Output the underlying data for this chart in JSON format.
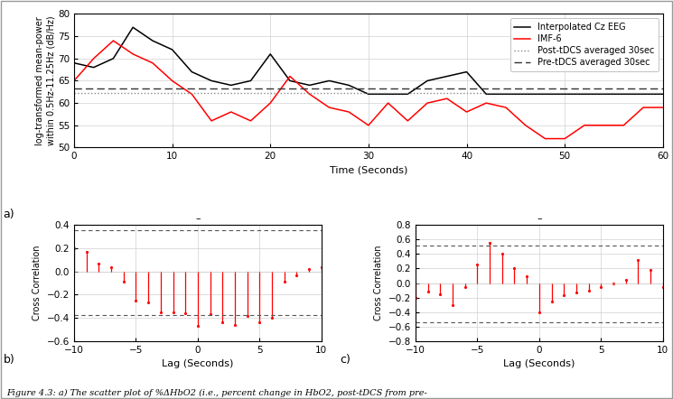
{
  "top_plot": {
    "black_x": [
      0,
      2,
      4,
      6,
      8,
      9,
      10,
      12,
      14,
      16,
      18,
      20,
      22,
      24,
      26,
      28,
      30,
      32,
      34,
      36,
      38,
      40,
      42,
      44,
      46,
      48,
      50,
      52,
      54,
      56,
      58,
      60
    ],
    "black_y": [
      69,
      68,
      70,
      77,
      74,
      73,
      72,
      67,
      65,
      64,
      65,
      71,
      65,
      64,
      65,
      64,
      62,
      62,
      62,
      65,
      66,
      67,
      62,
      62,
      62,
      62,
      62,
      62,
      62,
      62,
      62,
      62
    ],
    "red_x": [
      0,
      2,
      4,
      6,
      8,
      10,
      12,
      14,
      16,
      18,
      20,
      22,
      24,
      26,
      28,
      30,
      32,
      34,
      36,
      38,
      40,
      42,
      44,
      46,
      48,
      50,
      52,
      54,
      56,
      58,
      60
    ],
    "red_y": [
      65,
      70,
      74,
      71,
      69,
      65,
      62,
      56,
      58,
      56,
      60,
      66,
      62,
      59,
      58,
      55,
      60,
      56,
      60,
      61,
      58,
      60,
      59,
      55,
      52,
      52,
      55,
      55,
      55,
      59,
      59
    ],
    "post_tdcs": 62.2,
    "pre_tdcs": 63.2,
    "xlim": [
      0,
      60
    ],
    "ylim": [
      50,
      80
    ],
    "xticks": [
      0,
      10,
      20,
      30,
      40,
      50,
      60
    ],
    "yticks": [
      50,
      55,
      60,
      65,
      70,
      75,
      80
    ],
    "xlabel": "Time (Seconds)",
    "ylabel": "log-transformed mean-power\nwithin 0.5Hz-11.25Hz (dB/Hz)",
    "legend": [
      "Interpolated Cz EEG",
      "IMF-6",
      "Post-tDCS averaged 30sec",
      "Pre-tDCS averaged 30sec"
    ]
  },
  "bottom_left": {
    "lags": [
      -10,
      -9,
      -8,
      -7,
      -6,
      -5,
      -4,
      -3,
      -2,
      -1,
      0,
      1,
      2,
      3,
      4,
      5,
      6,
      7,
      8,
      9,
      10
    ],
    "xcorr": [
      0.2,
      0.17,
      0.07,
      0.04,
      -0.09,
      -0.25,
      -0.27,
      -0.35,
      -0.35,
      -0.36,
      -0.47,
      -0.37,
      -0.44,
      -0.46,
      -0.38,
      -0.44,
      -0.4,
      -0.09,
      -0.03,
      0.02,
      0.04
    ],
    "conf_upper": 0.355,
    "conf_lower": -0.375,
    "xlim": [
      -10,
      10
    ],
    "ylim": [
      -0.6,
      0.4
    ],
    "yticks": [
      -0.6,
      -0.4,
      -0.2,
      0.0,
      0.2,
      0.4
    ],
    "xticks": [
      -10,
      -5,
      0,
      5,
      10
    ],
    "xlabel": "Lag (Seconds)",
    "ylabel": "Cross Correlation"
  },
  "bottom_right": {
    "lags": [
      -10,
      -9,
      -8,
      -7,
      -6,
      -5,
      -4,
      -3,
      -2,
      -1,
      0,
      1,
      2,
      3,
      4,
      5,
      6,
      7,
      8,
      9,
      10
    ],
    "xcorr": [
      -0.2,
      -0.12,
      -0.15,
      -0.3,
      -0.05,
      0.26,
      0.56,
      0.4,
      0.2,
      0.1,
      -0.4,
      -0.25,
      -0.17,
      -0.13,
      -0.1,
      -0.05,
      0.0,
      0.05,
      0.32,
      0.18,
      -0.05
    ],
    "conf_upper": 0.515,
    "conf_lower": -0.535,
    "xlim": [
      -10,
      10
    ],
    "ylim": [
      -0.8,
      0.8
    ],
    "yticks": [
      -0.8,
      -0.6,
      -0.4,
      -0.2,
      0.0,
      0.2,
      0.4,
      0.6,
      0.8
    ],
    "xticks": [
      -10,
      -5,
      0,
      5,
      10
    ],
    "xlabel": "Lag (Seconds)",
    "ylabel": "Cross Correlation"
  },
  "caption": "Figure 4.3: a) The scatter plot of %ΔHbO2 (i.e., percent change in HbO2, post-tDCS from pre-",
  "bg_color": "#ffffff",
  "grid_color": "#d0d0d0",
  "conf_line_color": "#555555"
}
